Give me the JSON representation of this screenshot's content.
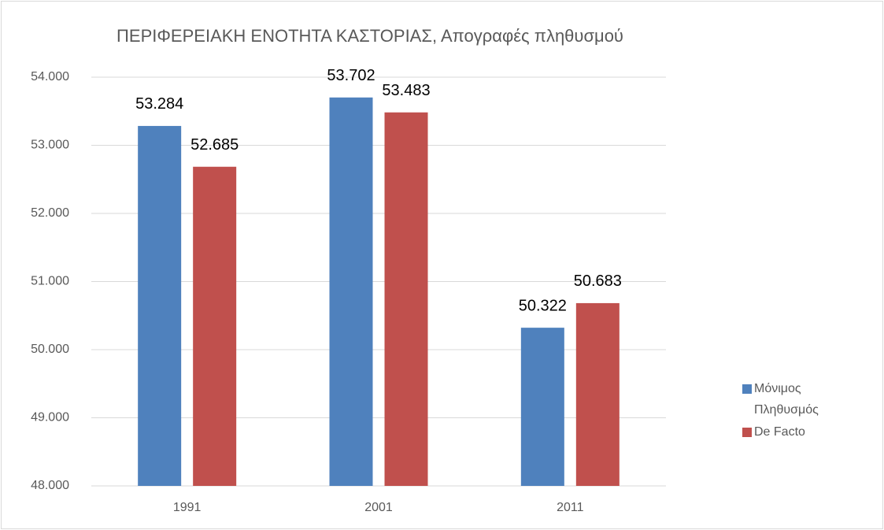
{
  "chart_data": {
    "type": "bar",
    "title": "ΠΕΡΙΦΕΡΕΙΑΚΗ ΕΝΟΤΗΤΑ ΚΑΣΤΟΡΙΑΣ, Απογραφές πληθυσμού",
    "categories": [
      "1991",
      "2001",
      "2011"
    ],
    "series": [
      {
        "name": "Μόνιμος Πληθυσμός",
        "color": "#4f81bd",
        "values": [
          53284,
          53702,
          50322
        ],
        "value_labels": [
          "53.284",
          "53.702",
          "50.322"
        ]
      },
      {
        "name": "De Facto",
        "color": "#c0504d",
        "values": [
          52685,
          53483,
          50683
        ],
        "value_labels": [
          "52.685",
          "53.483",
          "50.683"
        ]
      }
    ],
    "ylim": [
      48000,
      54000
    ],
    "yticks": [
      {
        "value": 48000,
        "label": "48.000"
      },
      {
        "value": 49000,
        "label": "49.000"
      },
      {
        "value": 50000,
        "label": "50.000"
      },
      {
        "value": 51000,
        "label": "51.000"
      },
      {
        "value": 52000,
        "label": "52.000"
      },
      {
        "value": 53000,
        "label": "53.000"
      },
      {
        "value": 54000,
        "label": "54.000"
      }
    ],
    "grid": true,
    "legend": "right"
  }
}
